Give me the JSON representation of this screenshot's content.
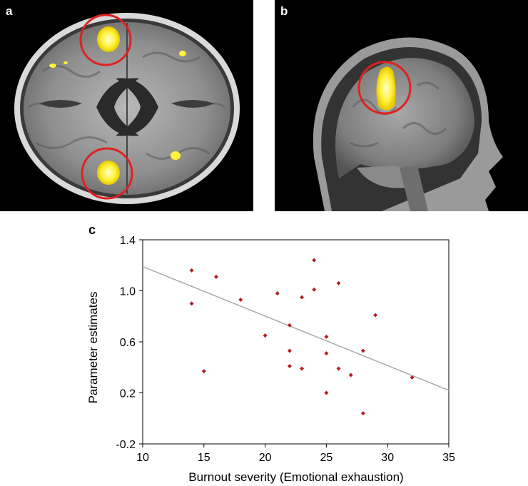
{
  "figure": {
    "panels": [
      {
        "label": "a",
        "view": "axial brain slice",
        "icon": "axial-brain-image"
      },
      {
        "label": "b",
        "view": "sagittal brain slice",
        "icon": "sagittal-brain-image"
      }
    ],
    "chart_label": "c",
    "colors": {
      "highlight_circle": "#e02020",
      "activation": "#fff23a",
      "points": "#b02020",
      "fit_line": "#aaaaaa"
    }
  },
  "chart_data": {
    "type": "scatter",
    "xlabel": "Burnout severity (Emotional exhaustion)",
    "ylabel": "Parameter estimates",
    "xlim": [
      10,
      35
    ],
    "ylim": [
      -0.2,
      1.4
    ],
    "xticks": [
      10,
      15,
      20,
      25,
      30,
      35
    ],
    "yticks": [
      -0.2,
      0.2,
      0.6,
      1.0,
      1.4
    ],
    "ytick_labels": [
      "-0.2",
      "0.2",
      "0.6",
      "1.0",
      "1.4"
    ],
    "grid": false,
    "points": [
      {
        "x": 14,
        "y": 1.16
      },
      {
        "x": 14,
        "y": 0.9
      },
      {
        "x": 15,
        "y": 0.37
      },
      {
        "x": 16,
        "y": 1.11
      },
      {
        "x": 18,
        "y": 0.93
      },
      {
        "x": 20,
        "y": 0.65
      },
      {
        "x": 21,
        "y": 0.98
      },
      {
        "x": 22,
        "y": 0.73
      },
      {
        "x": 22,
        "y": 0.53
      },
      {
        "x": 22,
        "y": 0.41
      },
      {
        "x": 23,
        "y": 0.95
      },
      {
        "x": 23,
        "y": 0.39
      },
      {
        "x": 24,
        "y": 1.24
      },
      {
        "x": 24,
        "y": 1.01
      },
      {
        "x": 25,
        "y": 0.64
      },
      {
        "x": 25,
        "y": 0.51
      },
      {
        "x": 25,
        "y": 0.2
      },
      {
        "x": 26,
        "y": 1.06
      },
      {
        "x": 26,
        "y": 0.39
      },
      {
        "x": 27,
        "y": 0.34
      },
      {
        "x": 28,
        "y": 0.53
      },
      {
        "x": 28,
        "y": 0.04
      },
      {
        "x": 29,
        "y": 0.81
      },
      {
        "x": 32,
        "y": 0.32
      }
    ],
    "fit_line": {
      "x": [
        10,
        35
      ],
      "y": [
        1.19,
        0.22
      ]
    }
  }
}
